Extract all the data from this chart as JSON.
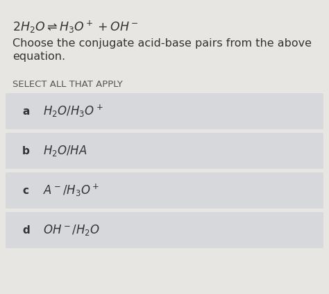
{
  "bg_color": "#e8e6e2",
  "option_bg": "#d6d8db",
  "title_eq": "$2H_2O \\rightleftharpoons H_3O^+ + OH^-$",
  "subtitle1": "Choose the conjugate acid-base pairs from the above",
  "subtitle2": "equation.",
  "select_label": "SELECT ALL THAT APPLY",
  "options": [
    {
      "letter": "a",
      "math": "$H_2O/H_3O^+$"
    },
    {
      "letter": "b",
      "math": "$H_2O/HA$"
    },
    {
      "letter": "c",
      "math": "$A^-/H_3O^+$"
    },
    {
      "letter": "d",
      "math": "$OH^-/H_2O$"
    }
  ],
  "title_fontsize": 12.5,
  "subtitle_fontsize": 11.5,
  "select_fontsize": 9.5,
  "option_letter_fontsize": 11,
  "option_text_fontsize": 12,
  "text_color": "#333333",
  "select_color": "#555555",
  "option_text_color": "#333333"
}
